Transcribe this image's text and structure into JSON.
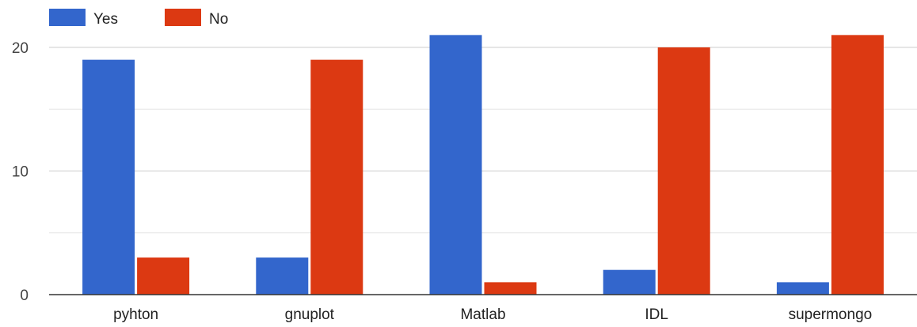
{
  "chart_data": {
    "type": "bar",
    "title": "",
    "xlabel": "",
    "ylabel": "",
    "categories": [
      "pyhton",
      "gnuplot",
      "Matlab",
      "IDL",
      "supermongo"
    ],
    "series": [
      {
        "name": "Yes",
        "color": "#3366cc",
        "values": [
          19,
          3,
          21,
          2,
          1
        ]
      },
      {
        "name": "No",
        "color": "#dc3912",
        "values": [
          3,
          19,
          1,
          20,
          21
        ]
      }
    ],
    "ylim": [
      0,
      20
    ],
    "yticks": [
      "0",
      "10",
      "20"
    ],
    "grid": true,
    "legend_position": "top-left"
  }
}
